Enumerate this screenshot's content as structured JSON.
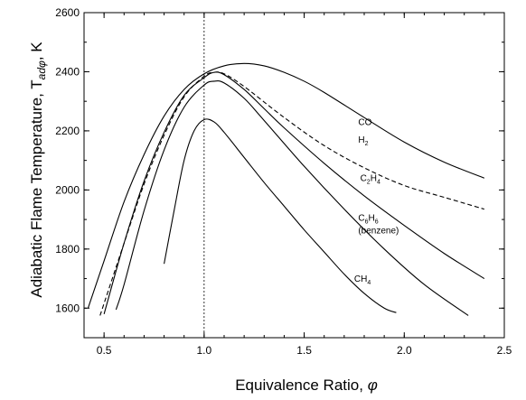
{
  "chart_data": {
    "type": "line",
    "xlabel": "Equivalence Ratio, ",
    "xlabel_symbol": "φ",
    "ylabel": "Adiabatic Flame Temperature, T",
    "ylabel_sub": "adφ",
    "ylabel_unit": ", K",
    "xlim": [
      0.4,
      2.5
    ],
    "ylim": [
      1500,
      2600
    ],
    "xticks": [
      0.5,
      1.0,
      1.5,
      2.0,
      2.5
    ],
    "xtick_labels": [
      "0.5",
      "1.0",
      "1.5",
      "2.0",
      "2.5"
    ],
    "yticks": [
      1600,
      1800,
      2000,
      2200,
      2400,
      2600
    ],
    "ytick_labels": [
      "1600",
      "1800",
      "2000",
      "2200",
      "2400",
      "2600"
    ],
    "reference_line_x": 1.0,
    "grid": false,
    "series": [
      {
        "name": "CO",
        "label_main": "CO",
        "label_sub": "",
        "label_rest": "",
        "label_note": "",
        "label_at": [
          1.77,
          2220
        ],
        "style": "solid",
        "x": [
          0.42,
          0.5,
          0.6,
          0.7,
          0.8,
          0.9,
          1.0,
          1.1,
          1.2,
          1.3,
          1.4,
          1.5,
          1.6,
          1.8,
          2.0,
          2.2,
          2.4
        ],
        "y": [
          1600,
          1760,
          1960,
          2120,
          2250,
          2340,
          2393,
          2420,
          2428,
          2420,
          2398,
          2368,
          2330,
          2245,
          2162,
          2094,
          2040
        ]
      },
      {
        "name": "H2",
        "label_main": "H",
        "label_sub": "2",
        "label_rest": "",
        "label_note": "",
        "label_at": [
          1.77,
          2160
        ],
        "style": "dashed",
        "x": [
          0.48,
          0.6,
          0.7,
          0.8,
          0.9,
          1.0,
          1.05,
          1.1,
          1.2,
          1.4,
          1.6,
          1.8,
          2.0,
          2.2,
          2.4
        ],
        "y": [
          1575,
          1820,
          2020,
          2185,
          2315,
          2385,
          2398,
          2393,
          2350,
          2245,
          2150,
          2075,
          2015,
          1975,
          1935
        ]
      },
      {
        "name": "C2H4",
        "label_main": "C",
        "label_sub": "2",
        "label_rest": "H",
        "label_sub2": "4",
        "label_note": "",
        "label_at": [
          1.78,
          2030
        ],
        "style": "solid",
        "x": [
          0.5,
          0.6,
          0.7,
          0.8,
          0.9,
          1.0,
          1.05,
          1.1,
          1.2,
          1.3,
          1.4,
          1.6,
          1.8,
          2.0,
          2.2,
          2.4
        ],
        "y": [
          1580,
          1820,
          2030,
          2195,
          2320,
          2380,
          2398,
          2390,
          2340,
          2275,
          2210,
          2090,
          1980,
          1880,
          1785,
          1700
        ]
      },
      {
        "name": "C6H6",
        "label_main": "C",
        "label_sub": "6",
        "label_rest": "H",
        "label_sub2": "6",
        "label_note": "(benzene)",
        "label_at": [
          1.77,
          1895
        ],
        "style": "solid",
        "x": [
          0.56,
          0.6,
          0.7,
          0.8,
          0.9,
          1.0,
          1.05,
          1.1,
          1.2,
          1.3,
          1.5,
          1.7,
          1.9,
          2.1,
          2.32
        ],
        "y": [
          1595,
          1680,
          1930,
          2135,
          2280,
          2355,
          2368,
          2362,
          2310,
          2235,
          2080,
          1935,
          1800,
          1680,
          1575
        ]
      },
      {
        "name": "CH4",
        "label_main": "CH",
        "label_sub": "4",
        "label_rest": "",
        "label_note": "",
        "label_at": [
          1.75,
          1690
        ],
        "style": "solid",
        "x": [
          0.8,
          0.85,
          0.9,
          0.95,
          1.0,
          1.05,
          1.1,
          1.2,
          1.3,
          1.4,
          1.5,
          1.6,
          1.7,
          1.8,
          1.9,
          1.96
        ],
        "y": [
          1750,
          1930,
          2100,
          2200,
          2238,
          2230,
          2195,
          2110,
          2025,
          1945,
          1865,
          1790,
          1715,
          1650,
          1600,
          1585
        ]
      }
    ]
  }
}
